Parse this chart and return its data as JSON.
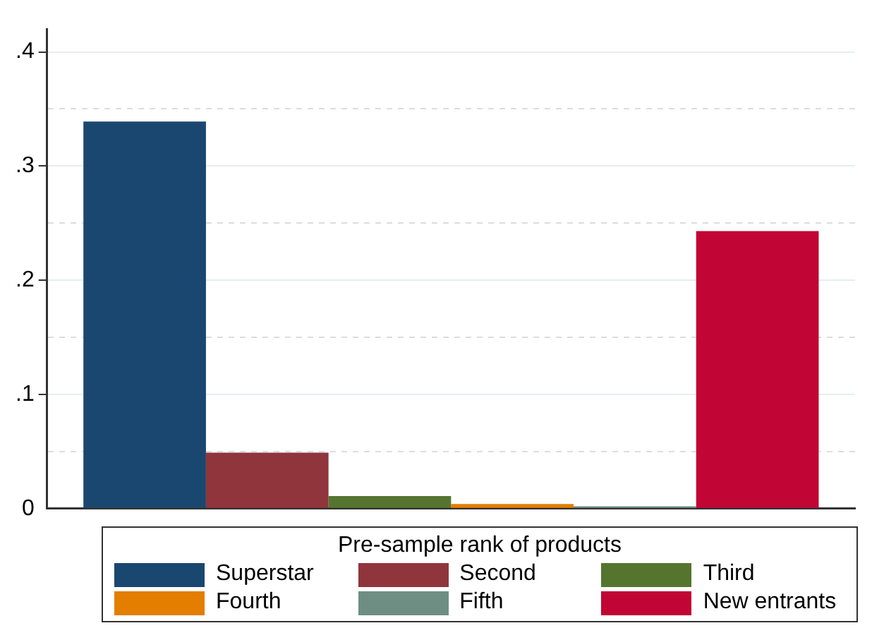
{
  "chart_data": {
    "type": "bar",
    "categories": [
      null
    ],
    "legend_title": "Pre-sample rank of products",
    "legend": "bottom",
    "grid": "y",
    "series": [
      {
        "name": "Superstar",
        "color": "#1a476f",
        "values": [
          0.339
        ]
      },
      {
        "name": "Second",
        "color": "#90353b",
        "values": [
          0.049
        ]
      },
      {
        "name": "Third",
        "color": "#55752f",
        "values": [
          0.011
        ]
      },
      {
        "name": "Fourth",
        "color": "#e37e00",
        "values": [
          0.004
        ]
      },
      {
        "name": "Fifth",
        "color": "#6e8e84",
        "values": [
          0.002
        ]
      },
      {
        "name": "New entrants",
        "color": "#c10534",
        "values": [
          0.243
        ]
      }
    ],
    "ylim": [
      0,
      0.42
    ],
    "yticks": [
      0,
      {
        "value": 0.05,
        "label": null
      },
      {
        "value": 0.1,
        "label": ".1"
      },
      {
        "value": 0.15,
        "label": null
      },
      {
        "value": 0.2,
        "label": ".2"
      },
      {
        "value": 0.25,
        "label": null
      },
      {
        "value": 0.3,
        "label": ".3"
      },
      {
        "value": 0.35,
        "label": null
      },
      {
        "value": 0.4,
        "label": ".4"
      }
    ]
  }
}
